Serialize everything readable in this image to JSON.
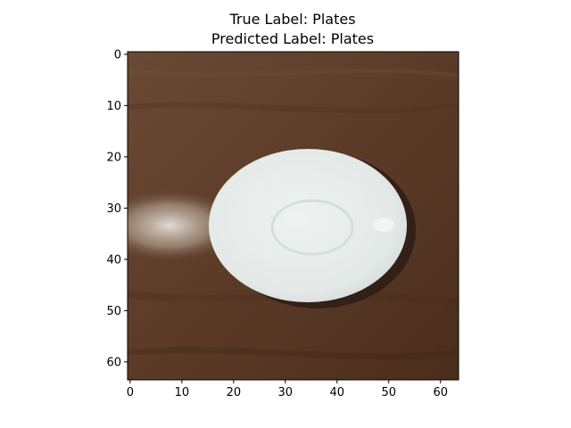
{
  "figure": {
    "title_line1": "True Label: Plates",
    "title_line2": "Predicted Label: Plates"
  },
  "image": {
    "description_colors": {
      "background_wood": "#5a3a26",
      "wood_dark": "#4a2c1c",
      "plate": "#e6ecea",
      "plate_shadow": "#2e1c14",
      "glare": "#d9d3cc"
    },
    "pixel_size": [
      64,
      64
    ]
  },
  "axes": {
    "x_ticks": [
      "0",
      "10",
      "20",
      "30",
      "40",
      "50",
      "60"
    ],
    "y_ticks": [
      "0",
      "10",
      "20",
      "30",
      "40",
      "50",
      "60"
    ],
    "xlim": [
      -0.5,
      63.5
    ],
    "ylim": [
      63.5,
      -0.5
    ]
  }
}
